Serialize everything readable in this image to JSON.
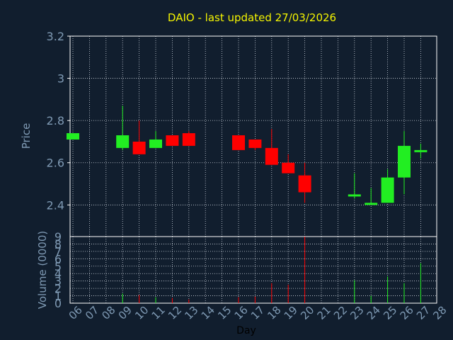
{
  "chart_data": {
    "type": "candlestick",
    "title": "DAIO - last updated 27/03/2026",
    "ylabel": "Price",
    "volume_label": "Volume (0000)",
    "xlabel": "Day",
    "x_ticks": [
      "06",
      "07",
      "08",
      "09",
      "10",
      "11",
      "12",
      "13",
      "14",
      "15",
      "16",
      "17",
      "18",
      "19",
      "20",
      "21",
      "22",
      "23",
      "24",
      "25",
      "26",
      "27",
      "28"
    ],
    "price_ylim": [
      2.25,
      3.2
    ],
    "price_ticks": [
      "3.2",
      "3",
      "2.8",
      "2.6",
      "2.4"
    ],
    "price_tick_values": [
      3.2,
      3.0,
      2.8,
      2.6,
      2.4
    ],
    "volume_ylim": [
      0,
      9
    ],
    "volume_ticks": [
      "9",
      "8",
      "7",
      "6",
      "5",
      "4",
      "3",
      "2",
      "1",
      "0"
    ],
    "volume_tick_values": [
      9,
      8,
      7,
      6,
      5,
      4,
      3,
      2,
      1,
      0
    ],
    "grid": true,
    "candles": [
      {
        "day": "06",
        "open": 2.71,
        "close": 2.74,
        "high": 2.74,
        "low": 2.71,
        "volume": 0.0
      },
      {
        "day": "09",
        "open": 2.67,
        "close": 2.73,
        "high": 2.87,
        "low": 2.66,
        "volume": 1.3
      },
      {
        "day": "10",
        "open": 2.7,
        "close": 2.64,
        "high": 2.8,
        "low": 2.64,
        "volume": 1.1
      },
      {
        "day": "11",
        "open": 2.67,
        "close": 2.71,
        "high": 2.75,
        "low": 2.67,
        "volume": 0.8
      },
      {
        "day": "12",
        "open": 2.73,
        "close": 2.68,
        "high": 2.73,
        "low": 2.68,
        "volume": 0.7
      },
      {
        "day": "13",
        "open": 2.74,
        "close": 2.68,
        "high": 2.75,
        "low": 2.68,
        "volume": 0.5
      },
      {
        "day": "16",
        "open": 2.73,
        "close": 2.66,
        "high": 2.73,
        "low": 2.66,
        "volume": 0.8
      },
      {
        "day": "17",
        "open": 2.71,
        "close": 2.67,
        "high": 2.71,
        "low": 2.66,
        "volume": 0.9
      },
      {
        "day": "18",
        "open": 2.67,
        "close": 2.59,
        "high": 2.76,
        "low": 2.59,
        "volume": 2.7
      },
      {
        "day": "19",
        "open": 2.6,
        "close": 2.55,
        "high": 2.64,
        "low": 2.55,
        "volume": 2.5
      },
      {
        "day": "20",
        "open": 2.54,
        "close": 2.46,
        "high": 2.6,
        "low": 2.41,
        "volume": 9.2
      },
      {
        "day": "23",
        "open": 2.44,
        "close": 2.45,
        "high": 2.55,
        "low": 2.43,
        "volume": 3.1
      },
      {
        "day": "24",
        "open": 2.41,
        "close": 2.41,
        "high": 2.48,
        "low": 2.4,
        "volume": 1.0
      },
      {
        "day": "25",
        "open": 2.41,
        "close": 2.53,
        "high": 2.57,
        "low": 2.41,
        "volume": 3.6
      },
      {
        "day": "26",
        "open": 2.53,
        "close": 2.68,
        "high": 2.75,
        "low": 2.45,
        "volume": 2.7
      },
      {
        "day": "27",
        "open": 2.65,
        "close": 2.66,
        "high": 2.69,
        "low": 2.62,
        "volume": 5.4
      }
    ],
    "colors": {
      "background": "#111e2e",
      "plot_border": "#ffffff",
      "grid": "#cfd6df",
      "title": "#f4f400",
      "axis_text": "#7f9ab4",
      "up": "#22ee22",
      "down": "#ff0000",
      "day_label": "#000000"
    }
  }
}
